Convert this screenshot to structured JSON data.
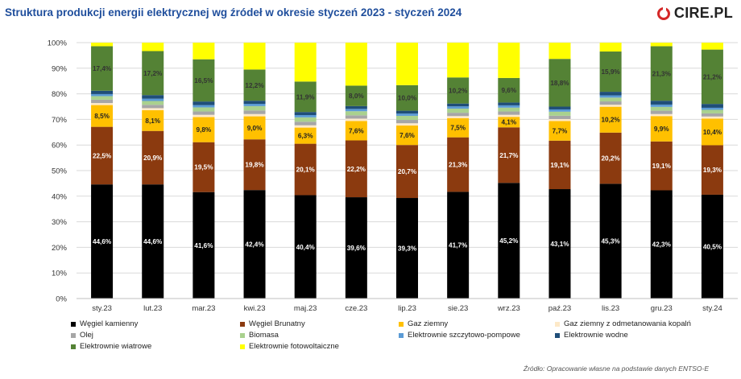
{
  "title": "Struktura produkcji energii elektrycznej wg źródeł w okresie styczeń 2023 - styczeń 2024",
  "logo": {
    "text": "CIRE.PL",
    "accent": "#d42828"
  },
  "source": "Źródło: Opracowanie własne na podstawie danych ENTSO-E",
  "chart_data": {
    "type": "bar",
    "stacked": true,
    "percent_stacked": true,
    "categories": [
      "sty.23",
      "lut.23",
      "mar.23",
      "kwi.23",
      "maj.23",
      "cze.23",
      "lip.23",
      "sie.23",
      "wrz.23",
      "paź.23",
      "lis.23",
      "gru.23",
      "sty.24"
    ],
    "ylim": [
      0,
      100
    ],
    "y_ticks": [
      "0%",
      "10%",
      "20%",
      "30%",
      "40%",
      "50%",
      "60%",
      "70%",
      "80%",
      "90%",
      "100%"
    ],
    "grid": true,
    "legend_position": "bottom",
    "series": [
      {
        "name": "Węgiel kamienny",
        "color": "#000000",
        "label_color": "#ffffff",
        "values": [
          44.6,
          44.6,
          41.6,
          42.4,
          40.4,
          39.6,
          39.3,
          41.7,
          45.2,
          43.1,
          45.3,
          42.3,
          40.5
        ],
        "labels": [
          "44,6%",
          "44,6%",
          "41,6%",
          "42,4%",
          "40,4%",
          "39,6%",
          "39,3%",
          "41,7%",
          "45,2%",
          "43,1%",
          "45,3%",
          "42,3%",
          "40,5%"
        ]
      },
      {
        "name": "Węgiel Brunatny",
        "color": "#8b3a0f",
        "label_color": "#ffffff",
        "values": [
          22.5,
          20.9,
          19.5,
          19.8,
          20.1,
          22.2,
          20.7,
          21.3,
          21.7,
          19.1,
          20.2,
          19.1,
          19.3
        ],
        "labels": [
          "22,5%",
          "20,9%",
          "19,5%",
          "19,8%",
          "20,1%",
          "22,2%",
          "20,7%",
          "21,3%",
          "21,7%",
          "19,1%",
          "20,2%",
          "19,1%",
          "19,3%"
        ]
      },
      {
        "name": "Gaz ziemny",
        "color": "#ffc000",
        "label_color": "#222222",
        "values": [
          8.5,
          8.1,
          9.8,
          9.0,
          6.3,
          7.6,
          7.6,
          7.5,
          4.1,
          7.7,
          10.2,
          9.9,
          10.4
        ],
        "labels": [
          "8,5%",
          "8,1%",
          "9,8%",
          "9,0%",
          "6,3%",
          "7,6%",
          "7,6%",
          "7,5%",
          "4,1%",
          "7,7%",
          "10,2%",
          "9,9%",
          "10,4%"
        ]
      },
      {
        "name": "Gaz ziemny z odmetanowania kopalń",
        "color": "#fde9c8",
        "values": [
          0.8,
          0.8,
          0.9,
          0.9,
          0.9,
          0.9,
          0.9,
          0.8,
          0.8,
          0.8,
          0.8,
          0.8,
          0.8
        ]
      },
      {
        "name": "Olej",
        "color": "#a6a6a6",
        "values": [
          1.3,
          1.3,
          1.3,
          1.4,
          1.4,
          1.3,
          1.3,
          1.3,
          1.3,
          1.3,
          1.3,
          1.3,
          1.2
        ]
      },
      {
        "name": "Biomasa",
        "color": "#a9d18e",
        "values": [
          1.4,
          1.5,
          1.6,
          1.7,
          1.7,
          1.6,
          1.6,
          1.6,
          1.5,
          1.6,
          1.5,
          1.5,
          1.4
        ]
      },
      {
        "name": "Elektrownie szczytowo-pompowe",
        "color": "#5b9bd5",
        "values": [
          0.8,
          0.9,
          0.9,
          0.9,
          0.9,
          0.9,
          0.9,
          0.9,
          0.9,
          0.9,
          0.9,
          0.9,
          0.8
        ]
      },
      {
        "name": "Elektrownie wodne",
        "color": "#1f4e79",
        "values": [
          1.3,
          1.4,
          1.4,
          1.2,
          1.2,
          1.1,
          1.1,
          1.1,
          1.1,
          1.1,
          1.4,
          1.5,
          1.5
        ]
      },
      {
        "name": "Elektrownie wiatrowe",
        "color": "#548235",
        "label_color": "#333333",
        "values": [
          17.4,
          17.2,
          16.5,
          12.2,
          11.9,
          8.0,
          10.0,
          10.2,
          9.6,
          18.8,
          15.9,
          21.3,
          21.2
        ],
        "labels": [
          "17,4%",
          "17,2%",
          "16,5%",
          "12,2%",
          "11,9%",
          "8,0%",
          "10,0%",
          "10,2%",
          "9,6%",
          "18,8%",
          "15,9%",
          "21,3%",
          "21,2%"
        ]
      },
      {
        "name": "Elektrownie fotowoltaiczne",
        "color": "#ffff00",
        "values": [
          1.4,
          3.3,
          6.5,
          10.5,
          15.2,
          16.8,
          16.6,
          13.6,
          13.8,
          6.4,
          3.5,
          1.4,
          2.7
        ]
      }
    ]
  }
}
